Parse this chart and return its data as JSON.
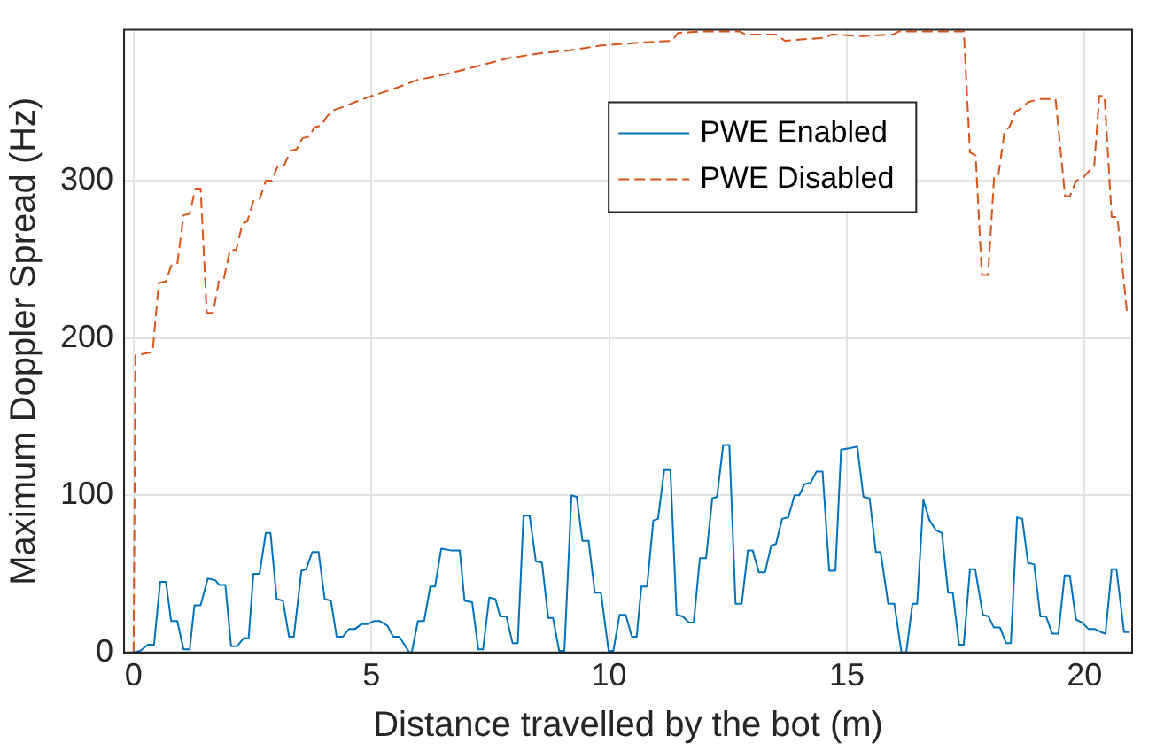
{
  "chart_data": {
    "type": "line",
    "xlabel": "Distance travelled by the bot (m)",
    "ylabel": "Maximum Doppler Spread (Hz)",
    "xlim": [
      -0.2,
      21
    ],
    "xticks": [
      0,
      5,
      10,
      15,
      20
    ],
    "ylim": [
      0,
      396
    ],
    "yticks": [
      0,
      100,
      200,
      300
    ],
    "grid": true,
    "legend": "top right",
    "marker": "none",
    "series": [
      {
        "name": "PWE Enabled",
        "color": "#0072bd",
        "line_style": "solid",
        "x": [
          0,
          0.14,
          0.3,
          0.43,
          0.56,
          0.68,
          0.79,
          0.92,
          1.05,
          1.18,
          1.28,
          1.41,
          1.56,
          1.72,
          1.8,
          1.93,
          2.05,
          2.18,
          2.31,
          2.42,
          2.52,
          2.65,
          2.78,
          2.88,
          3.01,
          3.14,
          3.27,
          3.37,
          3.53,
          3.63,
          3.76,
          3.89,
          4.02,
          4.15,
          4.27,
          4.4,
          4.53,
          4.66,
          4.79,
          4.92,
          5.05,
          5.18,
          5.34,
          5.46,
          5.59,
          5.8,
          5.85,
          5.98,
          6.11,
          6.24,
          6.34,
          6.47,
          6.67,
          6.86,
          6.96,
          7.12,
          7.25,
          7.35,
          7.48,
          7.61,
          7.71,
          7.84,
          7.97,
          8.08,
          8.2,
          8.33,
          8.46,
          8.59,
          8.72,
          8.82,
          8.95,
          9.06,
          9.21,
          9.32,
          9.44,
          9.57,
          9.7,
          9.83,
          9.99,
          10.09,
          10.22,
          10.35,
          10.48,
          10.58,
          10.68,
          10.8,
          10.93,
          11.03,
          11.16,
          11.29,
          11.42,
          11.55,
          11.68,
          11.78,
          11.91,
          12.04,
          12.17,
          12.27,
          12.4,
          12.53,
          12.66,
          12.79,
          12.92,
          13.02,
          13.15,
          13.28,
          13.41,
          13.51,
          13.64,
          13.77,
          13.9,
          14,
          14.11,
          14.24,
          14.36,
          14.49,
          14.63,
          14.76,
          14.88,
          15.07,
          15.22,
          15.35,
          15.48,
          15.61,
          15.71,
          15.87,
          16,
          16.15,
          16.25,
          16.38,
          16.48,
          16.61,
          16.74,
          16.87,
          17,
          17.13,
          17.23,
          17.36,
          17.46,
          17.59,
          17.7,
          17.86,
          17.98,
          18.09,
          18.22,
          18.35,
          18.45,
          18.58,
          18.69,
          18.81,
          18.94,
          19.07,
          19.19,
          19.32,
          19.45,
          19.58,
          19.69,
          19.82,
          19.95,
          20.08,
          20.21,
          20.34,
          20.44,
          20.57,
          20.67,
          20.83,
          20.95
        ],
        "values": [
          0,
          1,
          5,
          5,
          45,
          45,
          20,
          20,
          2,
          2,
          30,
          30,
          47,
          46,
          43,
          43,
          4,
          4,
          9,
          9,
          50,
          50,
          76,
          76,
          34,
          33,
          10,
          10,
          52,
          53,
          64,
          64,
          34,
          33,
          10,
          10,
          15,
          15,
          18,
          18,
          20,
          20,
          17,
          10,
          10,
          0,
          0,
          20,
          20,
          42,
          42,
          66,
          65,
          65,
          33,
          32,
          2,
          2,
          35,
          34,
          23,
          23,
          6,
          6,
          87,
          87,
          58,
          57,
          22,
          22,
          1,
          1,
          100,
          99,
          71,
          71,
          38,
          38,
          1,
          1,
          24,
          24,
          10,
          10,
          42,
          42,
          84,
          85,
          116,
          116,
          24,
          23,
          19,
          19,
          60,
          60,
          98,
          99,
          132,
          132,
          31,
          31,
          65,
          65,
          51,
          51,
          68,
          69,
          85,
          86,
          100,
          100,
          107,
          108,
          115,
          115,
          52,
          52,
          129,
          130,
          131,
          99,
          98,
          64,
          64,
          31,
          31,
          0,
          0,
          31,
          31,
          97,
          84,
          78,
          76,
          38,
          38,
          5,
          5,
          53,
          53,
          24,
          23,
          16,
          16,
          6,
          6,
          86,
          85,
          57,
          56,
          23,
          23,
          12,
          12,
          49,
          49,
          21,
          19,
          15,
          15,
          13,
          12,
          53,
          53,
          13,
          13
        ]
      },
      {
        "name": "PWE Disabled",
        "color": "#d95319",
        "line_style": "dashed",
        "x": [
          0,
          0.04,
          0.4,
          0.53,
          0.68,
          0.79,
          0.92,
          1.05,
          1.18,
          1.3,
          1.41,
          1.54,
          1.67,
          1.8,
          1.9,
          2.03,
          2.16,
          2.29,
          2.39,
          2.52,
          2.65,
          2.78,
          2.91,
          3.04,
          3.17,
          3.3,
          3.43,
          3.55,
          3.68,
          3.81,
          3.94,
          4.07,
          4.22,
          4.41,
          4.66,
          5.01,
          5.44,
          5.96,
          6.6,
          7.25,
          7.89,
          8.54,
          9.19,
          9.83,
          10.74,
          11.32,
          11.45,
          11.96,
          12.74,
          12.87,
          13.51,
          13.7,
          14.55,
          14.68,
          15.33,
          15.97,
          16.1,
          17.46,
          17.59,
          17.71,
          17.84,
          17.97,
          18.1,
          18.19,
          18.32,
          18.42,
          18.55,
          18.68,
          18.81,
          19.07,
          19.39,
          19.59,
          19.69,
          19.82,
          19.97,
          20.12,
          20.2,
          20.31,
          20.42,
          20.57,
          20.69,
          20.9
        ],
        "values": [
          0,
          189,
          191,
          235,
          236,
          246,
          247,
          278,
          279,
          295,
          295,
          216,
          216,
          237,
          238,
          256,
          256,
          273,
          274,
          287,
          288,
          300,
          300,
          310,
          310,
          319,
          320,
          327,
          328,
          334,
          335,
          341,
          345,
          347,
          350,
          354,
          358,
          364,
          368,
          373,
          378,
          381,
          383,
          386,
          388,
          389,
          394,
          395,
          395,
          393,
          393,
          389,
          391,
          393,
          392,
          393,
          395,
          395,
          318,
          316,
          240,
          240,
          303,
          304,
          332,
          334,
          344,
          346,
          350,
          352,
          352,
          290,
          290,
          300,
          302,
          307,
          308,
          354,
          354,
          277,
          277,
          214
        ]
      }
    ]
  }
}
